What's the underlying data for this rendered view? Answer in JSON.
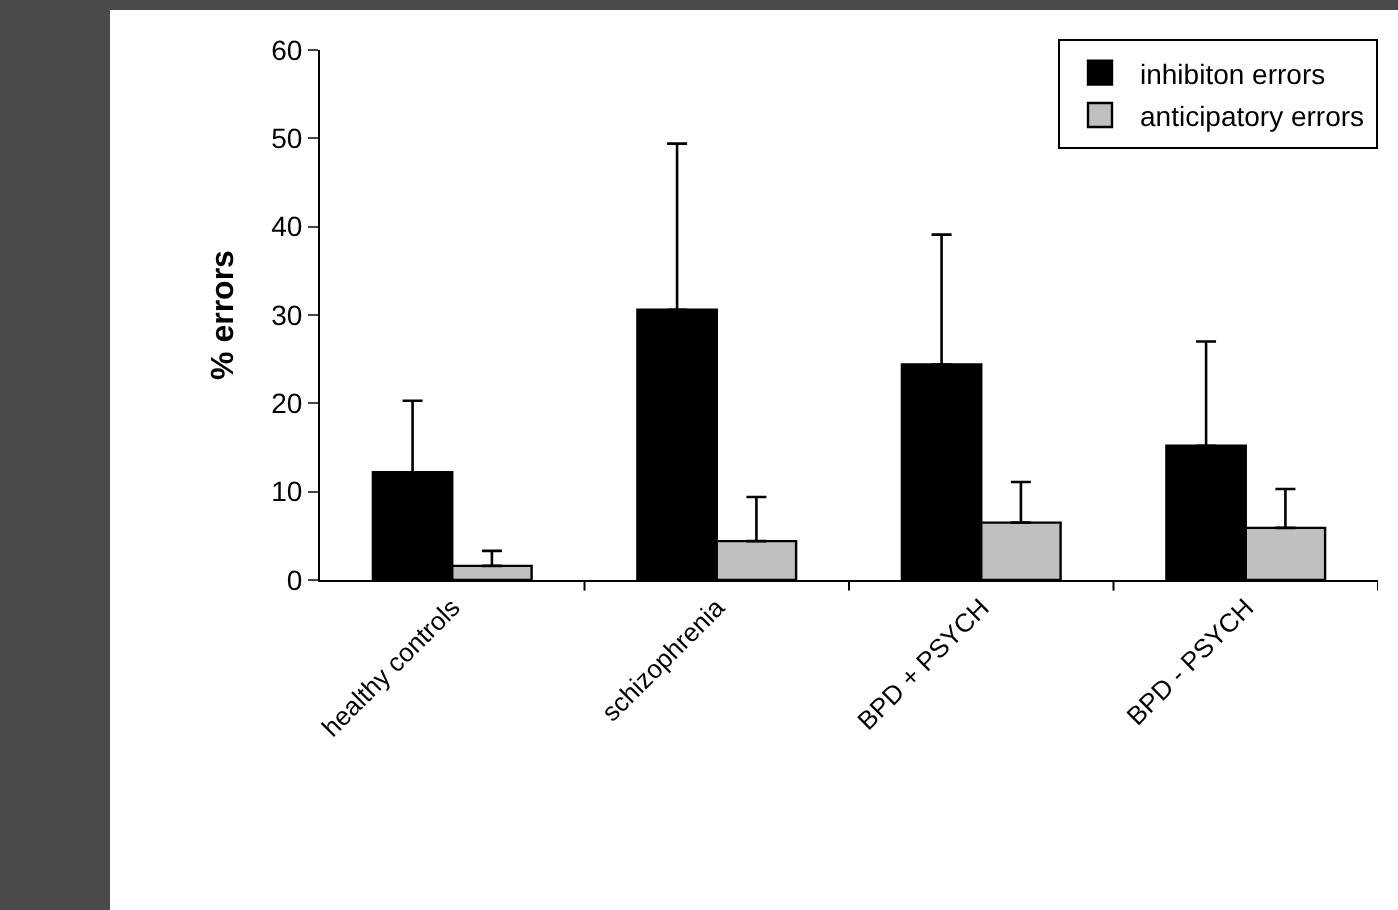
{
  "chart_data": {
    "type": "bar",
    "ylabel": "% errors",
    "categories": [
      "healthy controls",
      "schizophrenia",
      "BPD + PSYCH",
      "BPD - PSYCH"
    ],
    "series": [
      {
        "name": "inhibiton errors",
        "color": "#000000",
        "values": [
          12.2,
          30.6,
          24.4,
          15.2
        ],
        "errors": [
          [
            12.2,
            20.3
          ],
          [
            30.6,
            49.4
          ],
          [
            24.4,
            39.1
          ],
          [
            15.2,
            27.0
          ]
        ]
      },
      {
        "name": "anticipatory errors",
        "color": "#c0c0c0",
        "values": [
          1.6,
          4.4,
          6.5,
          5.9
        ],
        "errors": [
          [
            1.6,
            3.3
          ],
          [
            4.4,
            9.4
          ],
          [
            6.5,
            11.1
          ],
          [
            5.9,
            10.3
          ]
        ]
      }
    ],
    "ylim": [
      0,
      60
    ],
    "yticks": [
      0,
      10,
      20,
      30,
      40,
      50,
      60
    ],
    "grid": false,
    "legend": "top right"
  }
}
